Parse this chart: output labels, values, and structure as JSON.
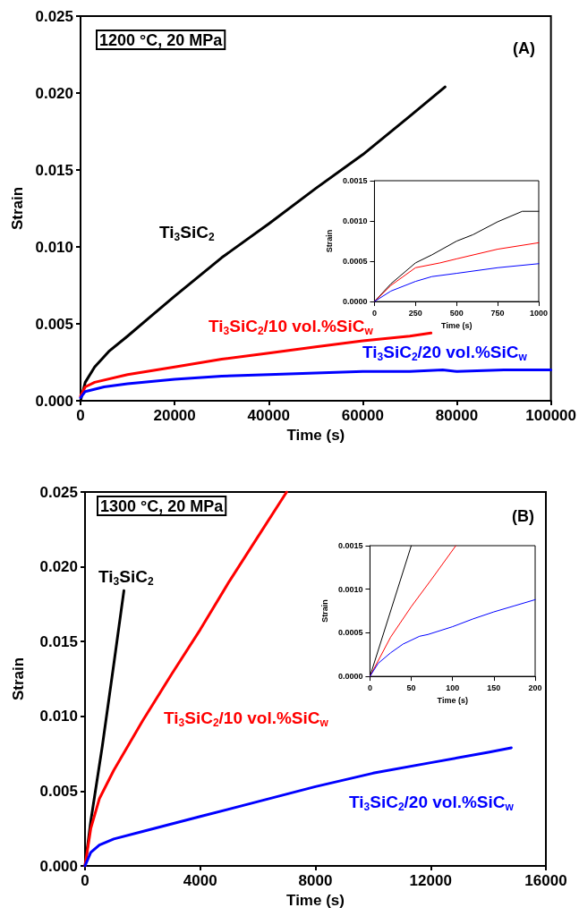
{
  "chart_data": [
    {
      "type": "line",
      "xlabel": "Time (s)",
      "ylabel": "Strain",
      "annotations": [
        "1200 °C, 20 MPa",
        "(A)"
      ],
      "xlim": [
        0,
        100000
      ],
      "xticks": [
        0,
        20000,
        40000,
        60000,
        80000,
        100000
      ],
      "ylim": [
        0,
        0.025
      ],
      "yticks": [
        {
          "value": 0,
          "label": "0.000"
        },
        {
          "value": 0.005,
          "label": "0.005"
        },
        {
          "value": 0.01,
          "label": "0.010"
        },
        {
          "value": 0.015,
          "label": "0.015"
        },
        {
          "value": 0.02,
          "label": "0.020"
        },
        {
          "value": 0.025,
          "label": "0.025"
        }
      ],
      "grid": false,
      "series": [
        {
          "name": "Ti$_{3}$SiC$_{2}$",
          "color": "#000000",
          "x": [
            0,
            1000,
            3000,
            6000,
            10000,
            15000,
            20000,
            30000,
            40000,
            50000,
            60000,
            70000,
            77500
          ],
          "values": [
            0,
            0.0012,
            0.0022,
            0.0032,
            0.0042,
            0.0055,
            0.0068,
            0.0093,
            0.0115,
            0.0138,
            0.016,
            0.0185,
            0.0204
          ]
        },
        {
          "name": "Ti$_{3}$SiC$_{2}$/10 vol.%SiC$_{w}$",
          "color": "#ff0000",
          "x": [
            0,
            1000,
            3000,
            10000,
            20000,
            30000,
            40000,
            50000,
            60000,
            70000,
            74500
          ],
          "values": [
            0.0003,
            0.0009,
            0.0012,
            0.0017,
            0.0022,
            0.0027,
            0.0031,
            0.0035,
            0.0039,
            0.0042,
            0.0044
          ]
        },
        {
          "name": "Ti$_{3}$SiC$_{2}$/20 vol.%SiC$_{w}$",
          "color": "#0000ff",
          "x": [
            0,
            1000,
            5000,
            10000,
            20000,
            30000,
            40000,
            50000,
            60000,
            70000,
            77000,
            80000,
            90000,
            100000
          ],
          "values": [
            0.0002,
            0.0006,
            0.0009,
            0.0011,
            0.0014,
            0.0016,
            0.0017,
            0.0018,
            0.0019,
            0.0019,
            0.002,
            0.0019,
            0.002,
            0.002
          ]
        }
      ]
    },
    {
      "type": "line",
      "xlabel": "Time (s)",
      "ylabel": "Strain",
      "xlim": [
        0,
        1000
      ],
      "xticks": [
        0,
        250,
        500,
        750,
        1000
      ],
      "ylim": [
        0,
        0.0015
      ],
      "yticks": [
        {
          "value": 0,
          "label": "0.0000"
        },
        {
          "value": 0.0005,
          "label": "0.0005"
        },
        {
          "value": 0.001,
          "label": "0.0010"
        },
        {
          "value": 0.0015,
          "label": "0.0015"
        }
      ],
      "grid": false,
      "series": [
        {
          "color": "#000000",
          "x": [
            0,
            100,
            250,
            350,
            500,
            600,
            750,
            900,
            1000
          ],
          "values": [
            0,
            0.00022,
            0.00048,
            0.00058,
            0.00075,
            0.00083,
            0.00099,
            0.00112,
            0.00112
          ]
        },
        {
          "color": "#ff0000",
          "x": [
            0,
            100,
            250,
            400,
            500,
            750,
            1000
          ],
          "values": [
            0,
            0.0002,
            0.00042,
            0.00048,
            0.00053,
            0.00065,
            0.00073
          ]
        },
        {
          "color": "#0000ff",
          "x": [
            0,
            100,
            250,
            350,
            500,
            750,
            1000
          ],
          "values": [
            0,
            0.00013,
            0.00025,
            0.00031,
            0.00035,
            0.00042,
            0.00047
          ]
        }
      ]
    },
    {
      "type": "line",
      "xlabel": "Time (s)",
      "ylabel": "Strain",
      "annotations": [
        "1300 °C, 20 MPa",
        "(B)"
      ],
      "xlim": [
        0,
        16000
      ],
      "xticks": [
        0,
        4000,
        8000,
        12000,
        16000
      ],
      "ylim": [
        0,
        0.025
      ],
      "yticks": [
        {
          "value": 0,
          "label": "0.000"
        },
        {
          "value": 0.005,
          "label": "0.005"
        },
        {
          "value": 0.01,
          "label": "0.010"
        },
        {
          "value": 0.015,
          "label": "0.015"
        },
        {
          "value": 0.02,
          "label": "0.020"
        },
        {
          "value": 0.025,
          "label": "0.025"
        }
      ],
      "grid": false,
      "series": [
        {
          "name": "Ti$_{3}$SiC$_{2}$",
          "color": "#000000",
          "x": [
            0,
            200,
            600,
            1000,
            1350
          ],
          "values": [
            0,
            0.003,
            0.008,
            0.0135,
            0.0184
          ]
        },
        {
          "name": "Ti$_{3}$SiC$_{2}$/10 vol.%SiC$_{w}$",
          "color": "#ff0000",
          "x": [
            0,
            200,
            500,
            1000,
            2000,
            3000,
            4000,
            5000,
            6000,
            7000
          ],
          "values": [
            0,
            0.0025,
            0.0045,
            0.0064,
            0.0097,
            0.0128,
            0.0158,
            0.019,
            0.022,
            0.025
          ]
        },
        {
          "name": "Ti$_{3}$SiC$_{2}$/20 vol.%SiC$_{w}$",
          "color": "#0000ff",
          "x": [
            0,
            200,
            500,
            1000,
            2000,
            4000,
            6000,
            8000,
            10000,
            12000,
            14000,
            14800
          ],
          "values": [
            0,
            0.0009,
            0.0014,
            0.0018,
            0.0023,
            0.0033,
            0.0043,
            0.0053,
            0.0062,
            0.0069,
            0.0076,
            0.0079
          ]
        }
      ]
    },
    {
      "type": "line",
      "xlabel": "Time (s)",
      "ylabel": "Strain",
      "xlim": [
        0,
        200
      ],
      "xticks": [
        0,
        50,
        100,
        150,
        200
      ],
      "ylim": [
        0,
        0.0015
      ],
      "yticks": [
        {
          "value": 0,
          "label": "0.0000"
        },
        {
          "value": 0.0005,
          "label": "0.0005"
        },
        {
          "value": 0.001,
          "label": "0.0010"
        },
        {
          "value": 0.0015,
          "label": "0.0015"
        }
      ],
      "grid": false,
      "series": [
        {
          "color": "#000000",
          "x": [
            0,
            50
          ],
          "values": [
            0,
            0.0015
          ]
        },
        {
          "color": "#ff0000",
          "x": [
            0,
            25,
            50,
            75,
            104
          ],
          "values": [
            0,
            0.00045,
            0.0008,
            0.00112,
            0.0015
          ]
        },
        {
          "color": "#0000ff",
          "x": [
            0,
            10,
            25,
            40,
            60,
            70,
            100,
            125,
            150,
            175,
            200
          ],
          "values": [
            0,
            0.00015,
            0.00027,
            0.00037,
            0.00046,
            0.00048,
            0.00057,
            0.00066,
            0.00074,
            0.00081,
            0.00088
          ]
        }
      ]
    }
  ]
}
